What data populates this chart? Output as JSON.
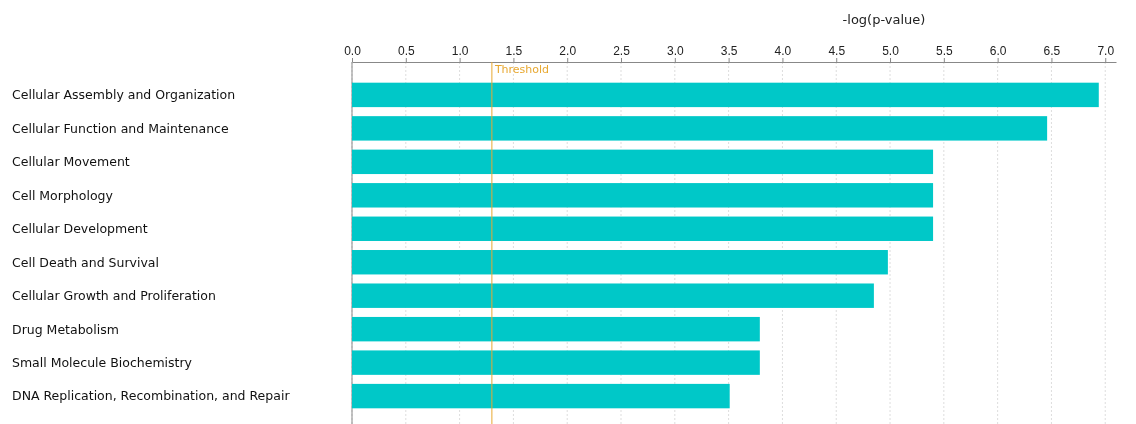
{
  "chart_data": {
    "type": "bar",
    "orientation": "horizontal",
    "xlabel": "-log(p-value)",
    "categories": [
      "Cellular Assembly and Organization",
      "Cellular Function and Maintenance",
      "Cellular Movement",
      "Cell Morphology",
      "Cellular Development",
      "Cell Death and Survival",
      "Cellular Growth and Proliferation",
      "Drug Metabolism",
      "Small Molecule Biochemistry",
      "DNA Replication, Recombination, and Repair"
    ],
    "values": [
      6.94,
      6.46,
      5.4,
      5.4,
      5.4,
      4.98,
      4.85,
      3.79,
      3.79,
      3.51
    ],
    "color": "#00c8c8",
    "xlim": [
      0,
      7.1
    ],
    "xticks": [
      {
        "value": 0,
        "label": "0.0"
      },
      {
        "value": 0.5,
        "label": "0.5"
      },
      {
        "value": 1,
        "label": "1.0"
      },
      {
        "value": 1.5,
        "label": "1.5"
      },
      {
        "value": 2,
        "label": "2.0"
      },
      {
        "value": 2.5,
        "label": "2.5"
      },
      {
        "value": 3,
        "label": "3.0"
      },
      {
        "value": 3.5,
        "label": "3.5"
      },
      {
        "value": 4,
        "label": "4.0"
      },
      {
        "value": 4.5,
        "label": "4.5"
      },
      {
        "value": 5,
        "label": "5.0"
      },
      {
        "value": 5.5,
        "label": "5.5"
      },
      {
        "value": 6,
        "label": "6.0"
      },
      {
        "value": 6.5,
        "label": "6.5"
      },
      {
        "value": 7,
        "label": "7.0"
      }
    ],
    "grid": "x",
    "ref_lines": [
      {
        "axis": "x",
        "value": 1.3,
        "label": "Threshold",
        "color": "#e8a830"
      }
    ]
  }
}
